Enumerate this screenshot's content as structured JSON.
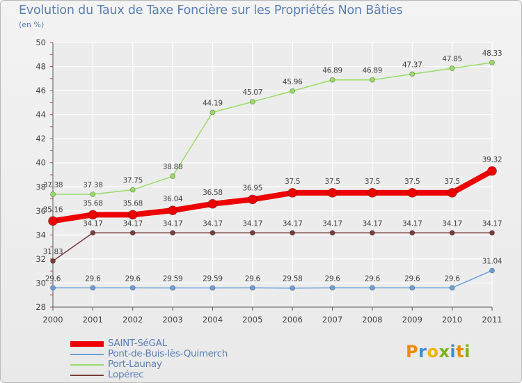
{
  "chart_data": {
    "type": "line",
    "title": "Evolution du Taux de Taxe Foncière sur les Propriétés Non Bâties",
    "ylabel": "(en %)",
    "xlabel": "",
    "ylim": [
      28,
      50
    ],
    "yticks": [
      28,
      30,
      32,
      34,
      36,
      38,
      40,
      42,
      44,
      46,
      48,
      50
    ],
    "categories": [
      "2000",
      "2001",
      "2002",
      "2003",
      "2004",
      "2005",
      "2006",
      "2007",
      "2008",
      "2009",
      "2010",
      "2011"
    ],
    "series": [
      {
        "name": "SAINT-SéGAL",
        "color": "#ee0000",
        "values": [
          35.16,
          35.68,
          35.68,
          36.04,
          36.58,
          36.95,
          37.5,
          37.5,
          37.5,
          37.5,
          37.5,
          39.32
        ],
        "labels": [
          "35.16",
          "35.68",
          "35.68",
          "36.04",
          "36.58",
          "36.95",
          "37.5",
          "37.5",
          "37.5",
          "37.5",
          "37.5",
          "39.32"
        ]
      },
      {
        "name": "Pont-de-Buis-lès-Quimerch",
        "color": "#6a9fd8",
        "values": [
          29.6,
          29.6,
          29.6,
          29.59,
          29.59,
          29.6,
          29.58,
          29.6,
          29.6,
          29.6,
          29.6,
          31.04
        ],
        "labels": [
          "29.6",
          "29.6",
          "29.6",
          "29.59",
          "29.59",
          "29.6",
          "29.58",
          "29.6",
          "29.6",
          "29.6",
          "29.6",
          "31.04"
        ]
      },
      {
        "name": "Port-Launay",
        "color": "#99dd66",
        "values": [
          37.38,
          37.38,
          37.75,
          38.88,
          44.19,
          45.07,
          45.96,
          46.89,
          46.89,
          47.37,
          47.85,
          48.33
        ],
        "labels": [
          "37.38",
          "37.38",
          "37.75",
          "38.88",
          "44.19",
          "45.07",
          "45.96",
          "46.89",
          "46.89",
          "47.37",
          "47.85",
          "48.33"
        ]
      },
      {
        "name": "Lopérec",
        "color": "#7a3b3b",
        "values": [
          31.83,
          34.17,
          34.17,
          34.17,
          34.17,
          34.17,
          34.17,
          34.17,
          34.17,
          34.17,
          34.17,
          34.17
        ],
        "labels": [
          "31.83",
          "34.17",
          "34.17",
          "34.17",
          "34.17",
          "34.17",
          "34.17",
          "34.17",
          "34.17",
          "34.17",
          "34.17",
          "34.17"
        ]
      }
    ],
    "legend_position": "bottom-left"
  },
  "logo": {
    "letters": [
      "P",
      "r",
      "o",
      "x",
      "i",
      "t",
      "i"
    ],
    "colors": [
      "#f08a00",
      "#3a8fd0",
      "#f0b400",
      "#7ab317",
      "#3a8fd0",
      "#f08a00",
      "#7ab317"
    ]
  }
}
